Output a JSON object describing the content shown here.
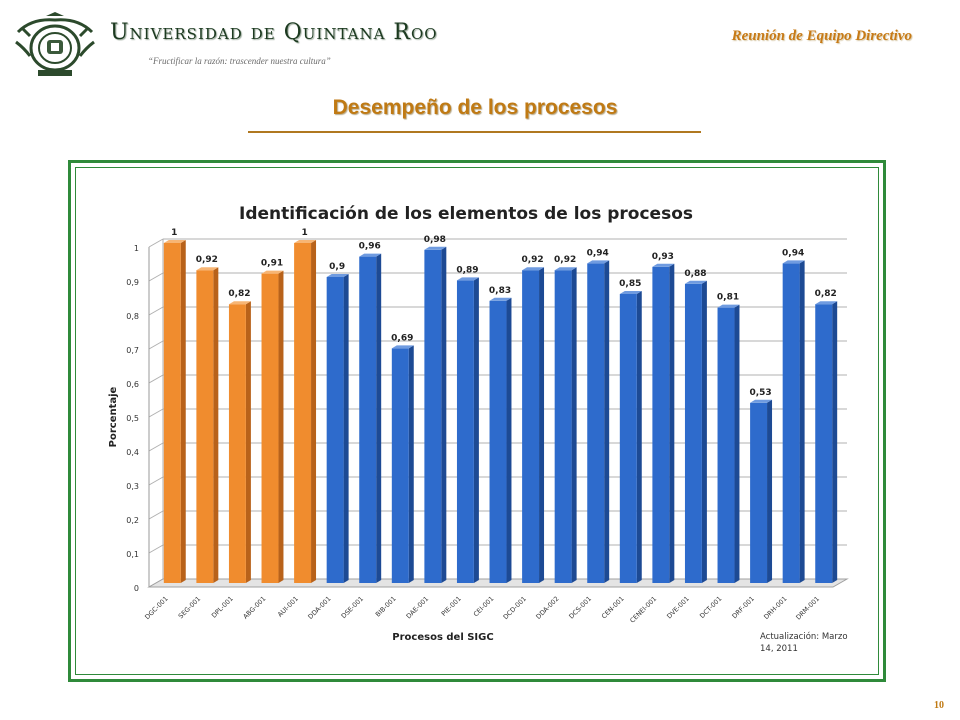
{
  "header": {
    "university_name": "Universidad de Quintana Roo",
    "motto": "“Fructificar la razón: trascender nuestra cultura”",
    "meeting": "Reunión de  Equipo Directivo",
    "page_title": "Desempeño de los procesos"
  },
  "footer": {
    "slide_number": "10"
  },
  "colors": {
    "orange_bar": "#f08c2e",
    "blue_bar": "#2e6bcc",
    "frame_green": "#2f8a3a",
    "title_gold": "#c07a14"
  },
  "chart_data": {
    "type": "bar",
    "title": "Identificación de los elementos de los procesos",
    "xlabel": "Procesos del SIGC",
    "ylabel": "Porcentaje",
    "ylim": [
      0,
      1
    ],
    "yticks": [
      "0",
      "0,1",
      "0,2",
      "0,3",
      "0,4",
      "0,5",
      "0,6",
      "0,7",
      "0,8",
      "0,9",
      "1"
    ],
    "grid": true,
    "style": "3d-cylinder",
    "note": "Actualización: Marzo 14, 2011",
    "categories": [
      "DGC-001",
      "SEG-001",
      "DPL-001",
      "ABG-001",
      "AUI-001",
      "DDA-001",
      "DSE-001",
      "BIB-001",
      "DAE-001",
      "PIE-001",
      "CEI-001",
      "DCD-001",
      "DDA-002",
      "DCS-001",
      "CEN-001",
      "CENEI-001",
      "DVE-001",
      "DCT-001",
      "DRF-001",
      "DRH-001",
      "DRM-001"
    ],
    "values": [
      1,
      0.92,
      0.82,
      0.91,
      1,
      0.9,
      0.96,
      0.69,
      0.98,
      0.89,
      0.83,
      0.92,
      0.92,
      0.94,
      0.85,
      0.93,
      0.88,
      0.81,
      0.53,
      0.94,
      0.82
    ],
    "value_labels": [
      "1",
      "0,92",
      "0,82",
      "0,91",
      "1",
      "0,9",
      "0,96",
      "0,69",
      "0,98",
      "0,89",
      "0,83",
      "0,92",
      "0,92",
      "0,94",
      "0,85",
      "0,93",
      "0,88",
      "0,81",
      "0,53",
      "0,94",
      "0,82"
    ],
    "bar_groups": [
      "orange",
      "orange",
      "orange",
      "orange",
      "orange",
      "blue",
      "blue",
      "blue",
      "blue",
      "blue",
      "blue",
      "blue",
      "blue",
      "blue",
      "blue",
      "blue",
      "blue",
      "blue",
      "blue",
      "blue",
      "blue"
    ]
  }
}
